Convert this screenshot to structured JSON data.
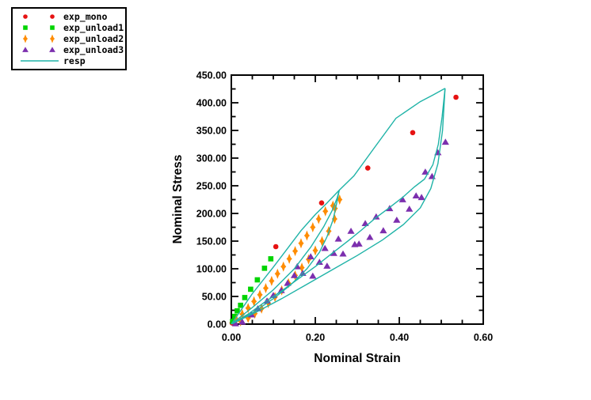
{
  "chart_data": {
    "type": "scatter",
    "title": "",
    "xlabel": "Nominal Strain",
    "ylabel": "Nominal Stress",
    "x_axis": {
      "min": 0.0,
      "max": 0.6,
      "major_ticks": [
        0.0,
        0.2,
        0.4,
        0.6
      ],
      "minor_step": 0.05,
      "decimals": 2
    },
    "y_axis": {
      "min": 0.0,
      "max": 450.0,
      "major_ticks": [
        0,
        50,
        100,
        150,
        200,
        250,
        300,
        350,
        400,
        450
      ],
      "minor_step": 25,
      "decimals": 2
    },
    "grid": false,
    "legend": {
      "position": "outside-top-left",
      "entries": [
        "exp_mono",
        "exp_unload1",
        "exp_unload2",
        "exp_unload3",
        "resp"
      ]
    },
    "series": [
      {
        "name": "exp_mono",
        "kind": "scatter",
        "marker": "circle",
        "color": "#e61212",
        "points": [
          [
            0.002,
            2
          ],
          [
            0.106,
            140
          ],
          [
            0.215,
            219
          ],
          [
            0.325,
            282
          ],
          [
            0.432,
            346
          ],
          [
            0.535,
            410
          ]
        ]
      },
      {
        "name": "exp_unload1",
        "kind": "scatter",
        "marker": "square",
        "color": "#00d400",
        "points": [
          [
            0.003,
            5
          ],
          [
            0.008,
            14
          ],
          [
            0.014,
            24
          ],
          [
            0.022,
            34
          ],
          [
            0.032,
            48
          ],
          [
            0.046,
            63
          ],
          [
            0.062,
            80
          ],
          [
            0.079,
            101
          ],
          [
            0.094,
            118
          ]
        ]
      },
      {
        "name": "exp_unload2",
        "kind": "scatter",
        "marker": "diamond",
        "color": "#ff8c00",
        "points": [
          [
            0.012,
            8
          ],
          [
            0.026,
            18
          ],
          [
            0.04,
            29
          ],
          [
            0.054,
            41
          ],
          [
            0.068,
            53
          ],
          [
            0.082,
            65
          ],
          [
            0.096,
            78
          ],
          [
            0.11,
            91
          ],
          [
            0.124,
            104
          ],
          [
            0.138,
            118
          ],
          [
            0.152,
            132
          ],
          [
            0.166,
            146
          ],
          [
            0.18,
            160
          ],
          [
            0.194,
            175
          ],
          [
            0.208,
            190
          ],
          [
            0.224,
            204
          ],
          [
            0.242,
            214
          ],
          [
            0.258,
            225
          ],
          [
            0.247,
            209
          ],
          [
            0.246,
            190
          ],
          [
            0.232,
            168
          ],
          [
            0.216,
            150
          ],
          [
            0.2,
            133
          ],
          [
            0.184,
            117
          ],
          [
            0.168,
            102
          ],
          [
            0.152,
            88
          ],
          [
            0.136,
            74
          ],
          [
            0.12,
            61
          ],
          [
            0.104,
            49
          ],
          [
            0.088,
            38
          ],
          [
            0.072,
            28
          ],
          [
            0.056,
            19
          ],
          [
            0.04,
            11
          ],
          [
            0.022,
            5
          ]
        ]
      },
      {
        "name": "exp_unload3",
        "kind": "scatter",
        "marker": "triangle",
        "color": "#7c2fae",
        "points": [
          [
            0.01,
            1
          ],
          [
            0.026,
            4
          ],
          [
            0.048,
            17
          ],
          [
            0.063,
            28
          ],
          [
            0.085,
            42
          ],
          [
            0.1,
            52
          ],
          [
            0.119,
            61
          ],
          [
            0.134,
            74
          ],
          [
            0.15,
            88
          ],
          [
            0.157,
            104
          ],
          [
            0.17,
            92
          ],
          [
            0.189,
            122
          ],
          [
            0.194,
            87
          ],
          [
            0.21,
            112
          ],
          [
            0.223,
            137
          ],
          [
            0.228,
            105
          ],
          [
            0.244,
            128
          ],
          [
            0.255,
            154
          ],
          [
            0.266,
            127
          ],
          [
            0.285,
            168
          ],
          [
            0.294,
            144
          ],
          [
            0.304,
            145
          ],
          [
            0.319,
            182
          ],
          [
            0.33,
            157
          ],
          [
            0.345,
            194
          ],
          [
            0.362,
            169
          ],
          [
            0.377,
            209
          ],
          [
            0.394,
            188
          ],
          [
            0.408,
            225
          ],
          [
            0.424,
            208
          ],
          [
            0.44,
            232
          ],
          [
            0.453,
            229
          ],
          [
            0.462,
            275
          ],
          [
            0.478,
            267
          ],
          [
            0.492,
            310
          ],
          [
            0.51,
            329
          ]
        ]
      },
      {
        "name": "resp",
        "kind": "line",
        "color": "#1fb3a7",
        "paths": [
          [
            [
              0,
              0
            ],
            [
              0.02,
              22
            ],
            [
              0.05,
              55
            ],
            [
              0.1,
              103
            ],
            [
              0.135,
              138
            ],
            [
              0.166,
              169
            ],
            [
              0.2,
              198
            ],
            [
              0.228,
              219
            ],
            [
              0.257,
              242
            ],
            [
              0.292,
              268
            ],
            [
              0.34,
              318
            ],
            [
              0.392,
              372
            ],
            [
              0.45,
              402
            ],
            [
              0.48,
              414
            ],
            [
              0.509,
              426
            ]
          ],
          [
            [
              0,
              0
            ],
            [
              0.05,
              30
            ],
            [
              0.1,
              62
            ],
            [
              0.15,
              100
            ],
            [
              0.19,
              140
            ],
            [
              0.22,
              176
            ],
            [
              0.24,
              205
            ],
            [
              0.252,
              228
            ],
            [
              0.257,
              242
            ]
          ],
          [
            [
              0.257,
              242
            ],
            [
              0.25,
              215
            ],
            [
              0.242,
              188
            ],
            [
              0.228,
              158
            ],
            [
              0.21,
              130
            ],
            [
              0.18,
              100
            ],
            [
              0.14,
              70
            ],
            [
              0.1,
              46
            ],
            [
              0.05,
              20
            ],
            [
              0,
              0
            ]
          ],
          [
            [
              0.509,
              426
            ],
            [
              0.502,
              375
            ],
            [
              0.493,
              325
            ],
            [
              0.48,
              288
            ],
            [
              0.46,
              262
            ],
            [
              0.436,
              248
            ],
            [
              0.408,
              229
            ],
            [
              0.372,
              208
            ],
            [
              0.342,
              191
            ],
            [
              0.31,
              170
            ],
            [
              0.279,
              151
            ],
            [
              0.24,
              128
            ],
            [
              0.2,
              104
            ],
            [
              0.16,
              82
            ],
            [
              0.12,
              60
            ],
            [
              0.08,
              40
            ],
            [
              0.04,
              18
            ],
            [
              0,
              0
            ]
          ],
          [
            [
              0,
              0
            ],
            [
              0.06,
              22
            ],
            [
              0.12,
              46
            ],
            [
              0.18,
              72
            ],
            [
              0.24,
              98
            ],
            [
              0.3,
              124
            ],
            [
              0.36,
              152
            ],
            [
              0.41,
              180
            ],
            [
              0.45,
              210
            ],
            [
              0.475,
              245
            ],
            [
              0.492,
              290
            ],
            [
              0.503,
              350
            ],
            [
              0.509,
              426
            ]
          ]
        ]
      }
    ]
  }
}
